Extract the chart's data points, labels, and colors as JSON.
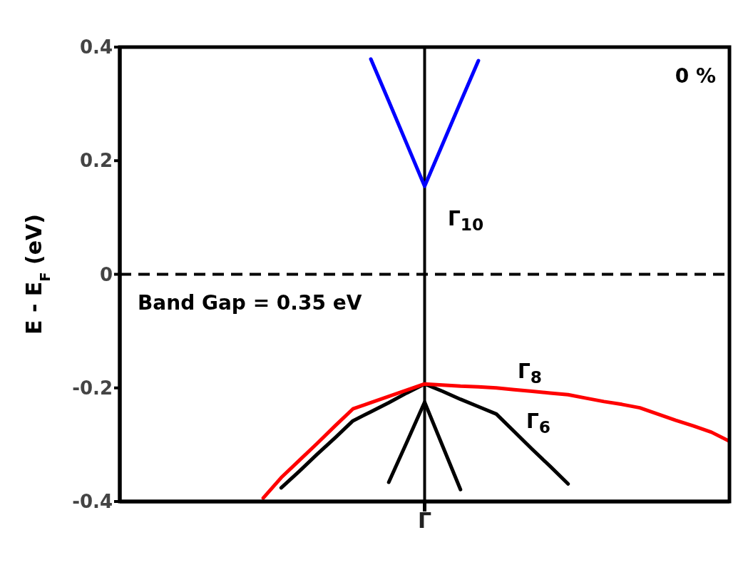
{
  "chart_data": {
    "type": "line",
    "ylabel": "E - E$_{F}$ (eV)",
    "categories": [
      null,
      null,
      null,
      null,
      null,
      null,
      null,
      null,
      null,
      null,
      null,
      null,
      null,
      null,
      null,
      null,
      null,
      "Γ",
      null,
      null,
      null,
      null,
      null,
      null,
      null,
      null,
      null,
      null,
      null,
      null,
      null,
      null,
      null,
      null,
      null
    ],
    "ylim": [
      -0.4,
      0.4
    ],
    "yticks": [
      -0.4,
      -0.2,
      0,
      0.2,
      0.4
    ],
    "line_style": "solid",
    "series": [
      {
        "color": "#0000ff",
        "values": [
          null,
          null,
          null,
          null,
          null,
          null,
          null,
          null,
          null,
          null,
          null,
          null,
          null,
          null,
          0.379,
          0.305,
          0.23,
          0.155,
          0.229,
          0.303,
          0.376,
          null,
          null,
          null,
          null,
          null,
          null,
          null,
          null,
          null,
          null,
          null,
          null,
          null,
          null
        ]
      },
      {
        "color": "#000000",
        "values": [
          null,
          null,
          null,
          null,
          null,
          null,
          null,
          null,
          null,
          -0.376,
          -0.347,
          -0.317,
          -0.288,
          -0.258,
          -0.242,
          -0.226,
          -0.209,
          -0.193,
          -0.206,
          -0.22,
          -0.233,
          -0.246,
          -0.277,
          -0.308,
          -0.338,
          -0.369,
          null,
          null,
          null,
          null,
          null,
          null,
          null,
          null,
          null
        ]
      },
      {
        "color": "#000000",
        "values": [
          null,
          null,
          null,
          null,
          null,
          null,
          null,
          null,
          null,
          null,
          null,
          null,
          null,
          null,
          null,
          -0.366,
          -0.296,
          -0.225,
          -0.302,
          -0.379,
          null,
          null,
          null,
          null,
          null,
          null,
          null,
          null,
          null,
          null,
          null,
          null,
          null,
          null,
          null
        ]
      },
      {
        "color": "#ff0000",
        "values": [
          null,
          null,
          null,
          null,
          null,
          null,
          null,
          null,
          -0.394,
          -0.358,
          -0.328,
          -0.298,
          -0.267,
          -0.237,
          -0.226,
          -0.215,
          -0.204,
          -0.193,
          -0.195,
          -0.197,
          -0.198,
          -0.2,
          -0.203,
          -0.206,
          -0.209,
          -0.212,
          -0.218,
          -0.224,
          -0.229,
          -0.235,
          -0.246,
          -0.257,
          -0.267,
          -0.278,
          -0.294
        ]
      }
    ],
    "ref_lines": [
      {
        "axis": "x",
        "value": "Γ",
        "color": "#000000",
        "line_style": "solid"
      },
      {
        "axis": "y",
        "value": 0,
        "color": "#000000",
        "line_style": "dashed"
      }
    ],
    "annotations": [
      "0 %",
      "Band Gap = 0.35 eV",
      "Γ$_{10}$",
      "Γ$_{8}$",
      "Γ$_{6}$"
    ]
  }
}
